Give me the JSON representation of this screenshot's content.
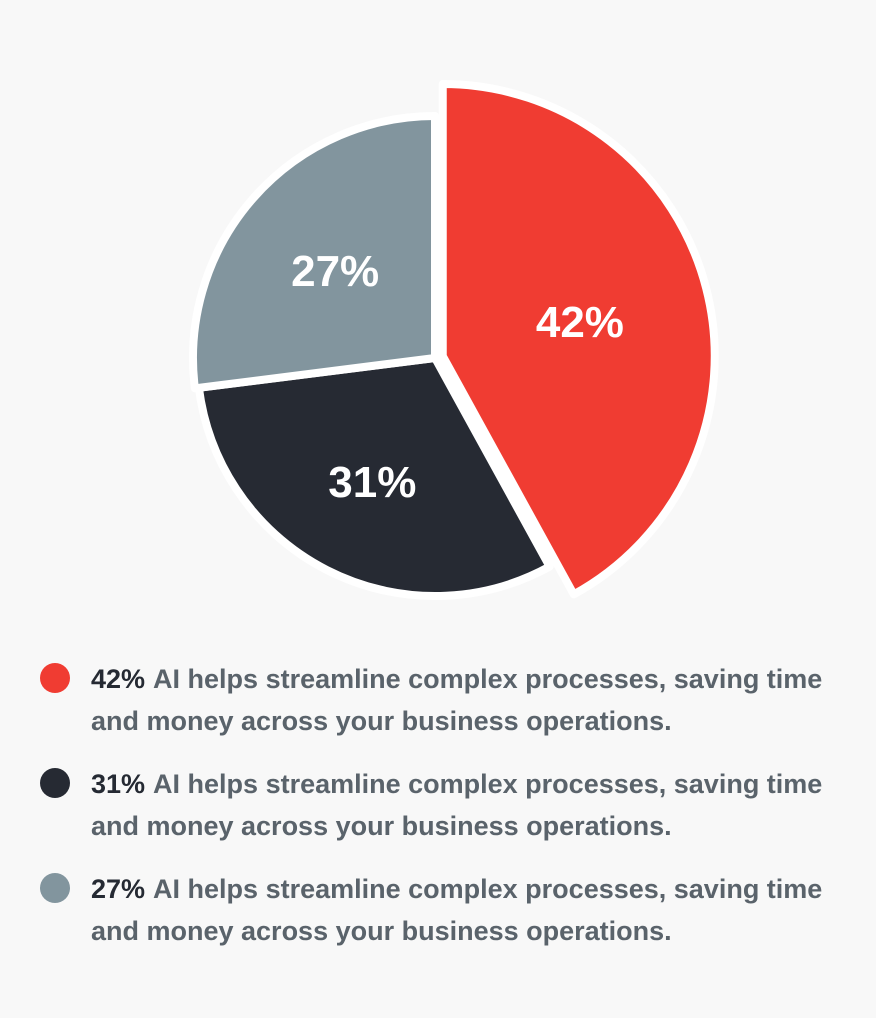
{
  "chart_data": {
    "type": "pie",
    "slices": [
      {
        "label": "42%",
        "value": 42,
        "color": "#f03c32"
      },
      {
        "label": "31%",
        "value": 31,
        "color": "#262a33"
      },
      {
        "label": "27%",
        "value": 27,
        "color": "#82959e"
      }
    ]
  },
  "legend": {
    "items": [
      {
        "pct": "42%",
        "text": "AI helps streamline complex processes, saving time and money across your business operations.",
        "color": "#f03c32"
      },
      {
        "pct": "31%",
        "text": "AI helps streamline complex processes, saving time and money across your business operations.",
        "color": "#262a33"
      },
      {
        "pct": "27%",
        "text": "AI helps streamline complex processes, saving time and money across your business operations.",
        "color": "#82959e"
      }
    ]
  }
}
